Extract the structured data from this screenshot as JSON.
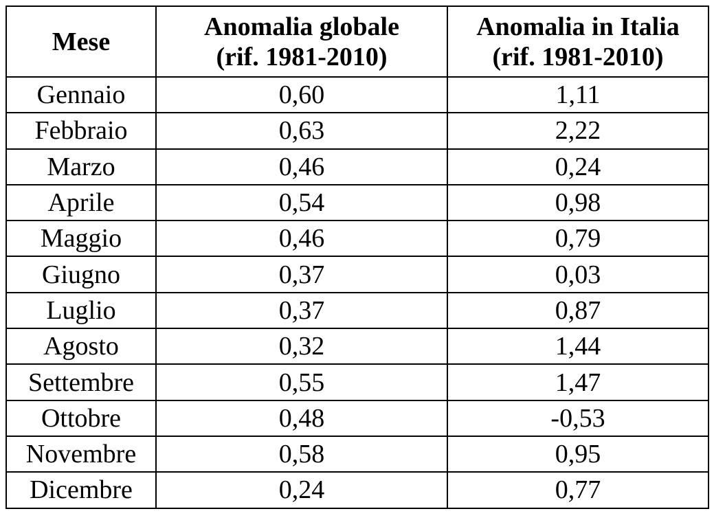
{
  "table": {
    "header": [
      "Mese",
      [
        "Anomalia globale",
        "(rif. 1981-2010)"
      ],
      [
        "Anomalia in Italia",
        "(rif. 1981-2010)"
      ]
    ],
    "rows": [
      [
        "Gennaio",
        "0,60",
        "1,11"
      ],
      [
        "Febbraio",
        "0,63",
        "2,22"
      ],
      [
        "Marzo",
        "0,46",
        "0,24"
      ],
      [
        "Aprile",
        "0,54",
        "0,98"
      ],
      [
        "Maggio",
        "0,46",
        "0,79"
      ],
      [
        "Giugno",
        "0,37",
        "0,03"
      ],
      [
        "Luglio",
        "0,37",
        "0,87"
      ],
      [
        "Agosto",
        "0,32",
        "1,44"
      ],
      [
        "Settembre",
        "0,55",
        "1,47"
      ],
      [
        "Ottobre",
        "0,48",
        "-0,53"
      ],
      [
        "Novembre",
        "0,58",
        "0,95"
      ],
      [
        "Dicembre",
        "0,24",
        "0,77"
      ]
    ]
  }
}
